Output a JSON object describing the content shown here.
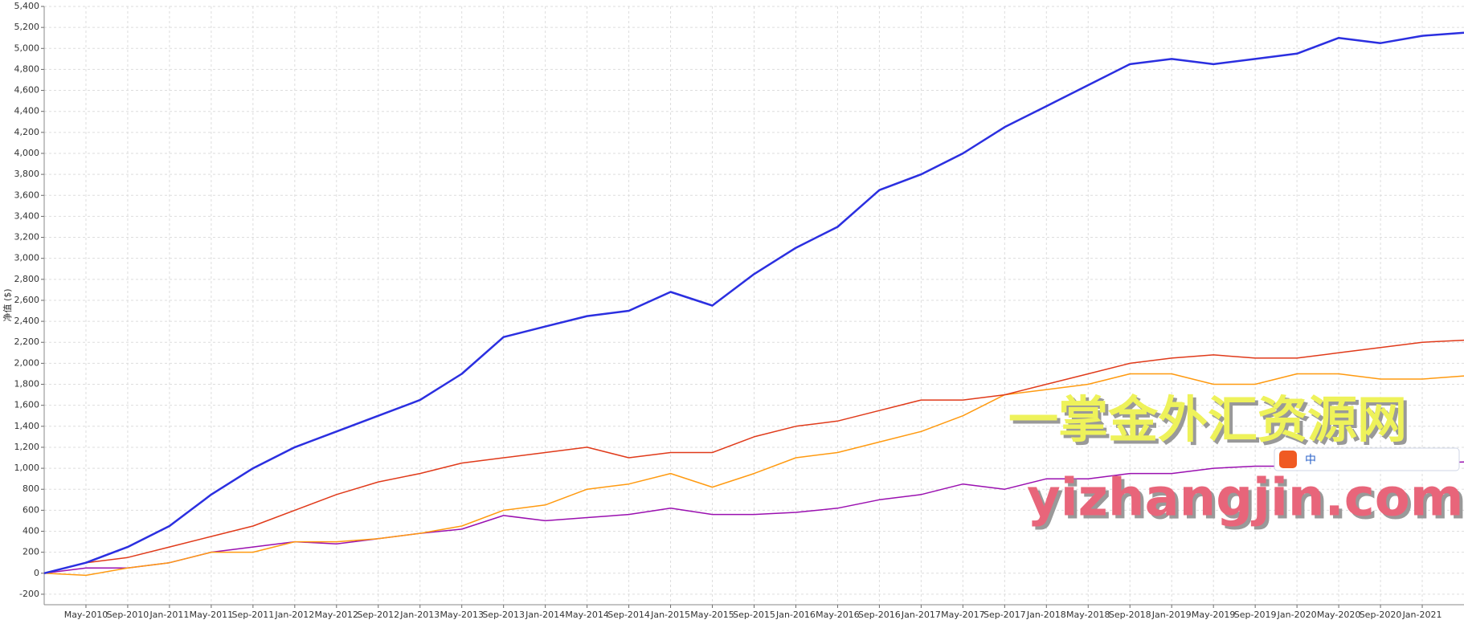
{
  "chart_data": {
    "type": "line",
    "y_label": "净值 ($)",
    "categories": [
      null,
      "May-2010",
      "Sep-2010",
      "Jan-2011",
      "May-2011",
      "Sep-2011",
      "Jan-2012",
      "May-2012",
      "Sep-2012",
      "Jan-2013",
      "May-2013",
      "Sep-2013",
      "Jan-2014",
      "May-2014",
      "Sep-2014",
      "Jan-2015",
      "May-2015",
      "Sep-2015",
      "Jan-2016",
      "May-2016",
      "Sep-2016",
      "Jan-2017",
      "May-2017",
      "Sep-2017",
      "Jan-2018",
      "May-2018",
      "Sep-2018",
      "Jan-2019",
      "May-2019",
      "Sep-2019",
      "Jan-2020",
      "May-2020",
      "Sep-2020",
      "Jan-2021",
      null
    ],
    "series": [
      {
        "color": "#2b2fe0",
        "values": [
          0,
          100,
          250,
          450,
          750,
          1000,
          1200,
          1350,
          1500,
          1650,
          1900,
          2250,
          2350,
          2450,
          2500,
          2680,
          2550,
          2850,
          3100,
          3300,
          3650,
          3800,
          4000,
          4250,
          4450,
          4650,
          4850,
          4900,
          4850,
          4900,
          4950,
          5100,
          5050,
          5120,
          5150
        ]
      },
      {
        "color": "#e03a1a",
        "values": [
          0,
          100,
          150,
          250,
          350,
          450,
          600,
          750,
          870,
          950,
          1050,
          1100,
          1150,
          1200,
          1100,
          1150,
          1150,
          1300,
          1400,
          1450,
          1550,
          1650,
          1650,
          1700,
          1800,
          1900,
          2000,
          2050,
          2080,
          2050,
          2050,
          2100,
          2150,
          2200,
          2220
        ]
      },
      {
        "color": "#ff9a10",
        "values": [
          0,
          -20,
          50,
          100,
          200,
          200,
          300,
          300,
          330,
          380,
          450,
          600,
          650,
          800,
          850,
          950,
          820,
          950,
          1100,
          1150,
          1250,
          1350,
          1500,
          1700,
          1750,
          1800,
          1900,
          1900,
          1800,
          1800,
          1900,
          1900,
          1850,
          1850,
          1880
        ]
      },
      {
        "color": "#9a10b0",
        "values": [
          0,
          50,
          50,
          100,
          200,
          250,
          300,
          280,
          330,
          380,
          420,
          550,
          500,
          530,
          560,
          620,
          560,
          560,
          580,
          620,
          700,
          750,
          850,
          800,
          900,
          900,
          950,
          950,
          1000,
          1020,
          1020,
          1050,
          1050,
          1050,
          1060
        ]
      }
    ],
    "ylim": [
      -300,
      5400
    ],
    "yticks": [
      -200,
      0,
      200,
      400,
      600,
      800,
      {
        "value": 1000,
        "label": "1,000"
      },
      {
        "value": 1200,
        "label": "1,200"
      },
      {
        "value": 1400,
        "label": "1,400"
      },
      {
        "value": 1600,
        "label": "1,600"
      },
      {
        "value": 1800,
        "label": "1,800"
      },
      {
        "value": 2000,
        "label": "2,000"
      },
      {
        "value": 2200,
        "label": "2,200"
      },
      {
        "value": 2400,
        "label": "2,400"
      },
      {
        "value": 2600,
        "label": "2,600"
      },
      {
        "value": 2800,
        "label": "2,800"
      },
      {
        "value": 3000,
        "label": "3,000"
      },
      {
        "value": 3200,
        "label": "3,200"
      },
      {
        "value": 3400,
        "label": "3,400"
      },
      {
        "value": 3600,
        "label": "3,600"
      },
      {
        "value": 3800,
        "label": "3,800"
      },
      {
        "value": 4000,
        "label": "4,000"
      },
      {
        "value": 4200,
        "label": "4,200"
      },
      {
        "value": 4400,
        "label": "4,400"
      },
      {
        "value": 4600,
        "label": "4,600"
      },
      {
        "value": 4800,
        "label": "4,800"
      },
      {
        "value": 5000,
        "label": "5,000"
      },
      {
        "value": 5200,
        "label": "5,200"
      },
      {
        "value": 5400,
        "label": "5,400"
      }
    ],
    "grid": true,
    "annotations": [
      "一掌金外汇资源网",
      "yizhangjin.com",
      "中"
    ]
  }
}
